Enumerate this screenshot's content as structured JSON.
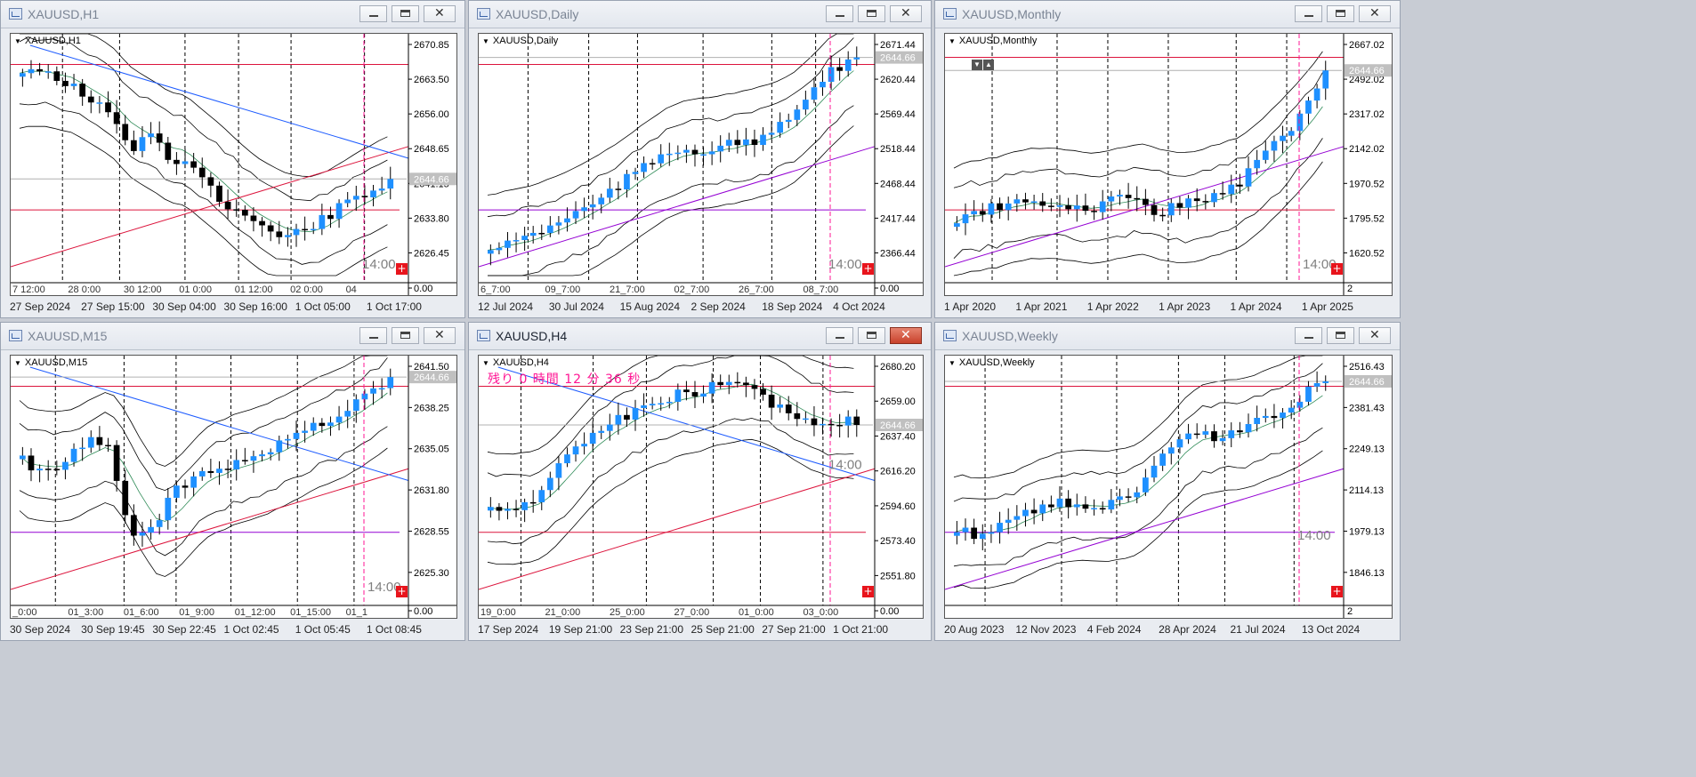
{
  "windows": [
    {
      "id": "h1",
      "title": "XAUUSD,H1",
      "chart_label": "XAUUSD,H1",
      "active": false,
      "price_labels": [
        "2670.85",
        "2663.50",
        "2656.00",
        "2648.65",
        "2641.15",
        "2633.80",
        "2626.45",
        "0.00"
      ],
      "current_price": "2644.66",
      "session_label": "14:00",
      "inner_time_labels": [
        "7 12:00",
        "28 0:00",
        "30 12:00",
        "01 0:00",
        "01 12:00",
        "02 0:00",
        "04"
      ],
      "x_axis": [
        "27 Sep 2024",
        "27 Sep 15:00",
        "30 Sep 04:00",
        "30 Sep 16:00",
        "1 Oct 05:00",
        "1 Oct 17:00"
      ]
    },
    {
      "id": "daily",
      "title": "XAUUSD,Daily",
      "chart_label": "XAUUSD,Daily",
      "active": false,
      "price_labels": [
        "2671.44",
        "2620.44",
        "2569.44",
        "2518.44",
        "2468.44",
        "2417.44",
        "2366.44",
        "0.00"
      ],
      "current_price": "2644.66",
      "session_label": "14:00",
      "inner_time_labels": [
        "6_7:00",
        "09_7:00",
        "21_7:00",
        "02_7:00",
        "26_7:00",
        "08_7:00"
      ],
      "x_axis": [
        "12 Jul 2024",
        "30 Jul 2024",
        "15 Aug 2024",
        "2 Sep 2024",
        "18 Sep 2024",
        "4 Oct 2024"
      ]
    },
    {
      "id": "monthly",
      "title": "XAUUSD,Monthly",
      "chart_label": "XAUUSD,Monthly",
      "active": false,
      "price_labels": [
        "2667.02",
        "2492.02",
        "2317.02",
        "2142.02",
        "1970.52",
        "1795.52",
        "1620.52"
      ],
      "current_price": "2644.66",
      "session_label": "14:00",
      "sub_label": "2",
      "nav_buttons": [
        "down-arrow-icon",
        "up-arrow-icon"
      ],
      "x_axis": [
        "1 Apr 2020",
        "1 Apr 2021",
        "1 Apr 2022",
        "1 Apr 2023",
        "1 Apr 2024",
        "1 Apr 2025"
      ]
    },
    {
      "id": "m15",
      "title": "XAUUSD,M15",
      "chart_label": "XAUUSD,M15",
      "active": false,
      "price_labels": [
        "2641.50",
        "2638.25",
        "2635.05",
        "2631.80",
        "2628.55",
        "2625.30",
        "0.00"
      ],
      "current_price": "2644.66",
      "session_label": "14:00",
      "inner_time_labels": [
        "_0:00",
        "01_3:00",
        "01_6:00",
        "01_9:00",
        "01_12:00",
        "01_15:00",
        "01_1"
      ],
      "x_axis": [
        "30 Sep 2024",
        "30 Sep 19:45",
        "30 Sep 22:45",
        "1 Oct 02:45",
        "1 Oct 05:45",
        "1 Oct 08:45"
      ]
    },
    {
      "id": "h4",
      "title": "XAUUSD,H4",
      "chart_label": "XAUUSD,H4",
      "active": true,
      "countdown": "残り 0 時間 12 分 36 秒",
      "price_labels": [
        "2680.20",
        "2659.00",
        "2637.40",
        "2616.20",
        "2594.60",
        "2573.40",
        "2551.80",
        "0.00"
      ],
      "current_price": "2644.66",
      "session_label": "14:00",
      "inner_time_labels": [
        "19_0:00",
        "21_0:00",
        "25_0:00",
        "27_0:00",
        "01_0:00",
        "03_0:00"
      ],
      "x_axis": [
        "17 Sep 2024",
        "19 Sep 21:00",
        "23 Sep 21:00",
        "25 Sep 21:00",
        "27 Sep 21:00",
        "1 Oct 21:00"
      ]
    },
    {
      "id": "weekly",
      "title": "XAUUSD,Weekly",
      "chart_label": "XAUUSD,Weekly",
      "active": false,
      "price_labels": [
        "2516.43",
        "2381.43",
        "2249.13",
        "2114.13",
        "1979.13",
        "1846.13"
      ],
      "current_price": "2644.66",
      "session_label": "14:00",
      "sub_label": "2",
      "x_axis": [
        "20 Aug 2023",
        "12 Nov 2023",
        "4 Feb 2024",
        "28 Apr 2024",
        "21 Jul 2024",
        "13 Oct 2024"
      ]
    }
  ],
  "icons": {
    "window_icon": "chart-window-icon",
    "minimize": "minimize-icon",
    "maximize": "maximize-icon",
    "close": "close-icon",
    "trade": "plus-icon"
  },
  "colors": {
    "bull": "#1e90ff",
    "bear": "#000000",
    "band": "#000000",
    "ma": "#2e8b57",
    "hline": "#dc143c",
    "trend_blue": "#1e5cff",
    "trend_purple": "#9400d3",
    "session": "#ff1493",
    "grid": "#000000"
  }
}
